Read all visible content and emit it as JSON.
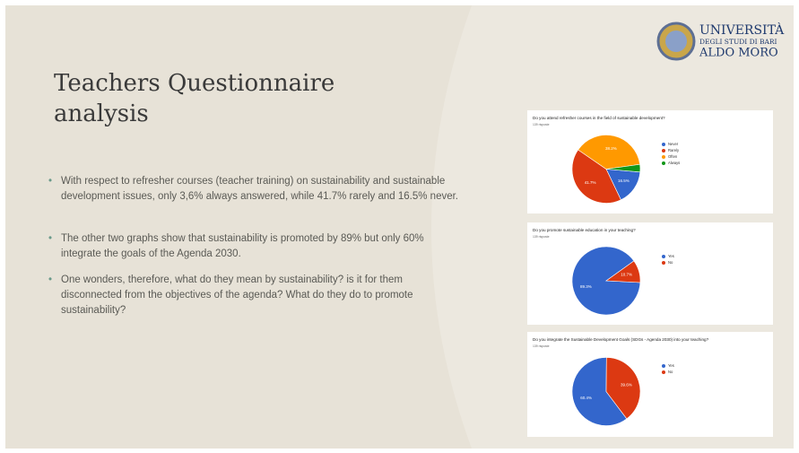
{
  "logo": {
    "line1": "UNIVERSITÀ",
    "line2": "DEGLI STUDI DI BARI",
    "line3": "ALDO MORO"
  },
  "title": "Teachers Questionnaire analysis",
  "bullets": [
    "With respect to refresher courses (teacher training) on sustainability and sustainable development issues, only 3,6% always answered, while 41.7% rarely and 16.5% never.",
    "The other two graphs show that sustainability is promoted by 89% but only 60% integrate the goals of the Agenda 2030.",
    "One wonders, therefore, what do they mean by sustainability? is it for them disconnected from the objectives of the agenda? What do they do to promote sustainability?"
  ],
  "chart_data": [
    {
      "type": "pie",
      "title": "Do you attend refresher courses in the field of sustainable development?",
      "subtitle": "139 risposte",
      "categories": [
        "Never",
        "Rarely",
        "Often",
        "Always"
      ],
      "values": [
        16.5,
        41.7,
        38.2,
        3.6
      ],
      "value_labels": [
        "16.5%",
        "41.7%",
        "38.2%",
        null
      ],
      "colors": [
        "#3366cc",
        "#dc3912",
        "#ff9900",
        "#109618"
      ],
      "legend": "right"
    },
    {
      "type": "pie",
      "title": "Do you promote sustainable education in your teaching?",
      "subtitle": "139 risposte",
      "categories": [
        "Yes",
        "No"
      ],
      "values": [
        89.3,
        10.7
      ],
      "value_labels": [
        "89.3%",
        "10.7%"
      ],
      "colors": [
        "#3366cc",
        "#dc3912"
      ],
      "legend": "right"
    },
    {
      "type": "pie",
      "title": "Do you integrate the Sustainable Development Goals (SDGs - Agenda 2030) into your teaching?",
      "subtitle": "139 risposte",
      "categories": [
        "Yes",
        "No"
      ],
      "values": [
        60.4,
        39.6
      ],
      "value_labels": [
        "60.4%",
        "39.6%"
      ],
      "colors": [
        "#3366cc",
        "#dc3912"
      ],
      "legend": "right"
    }
  ]
}
